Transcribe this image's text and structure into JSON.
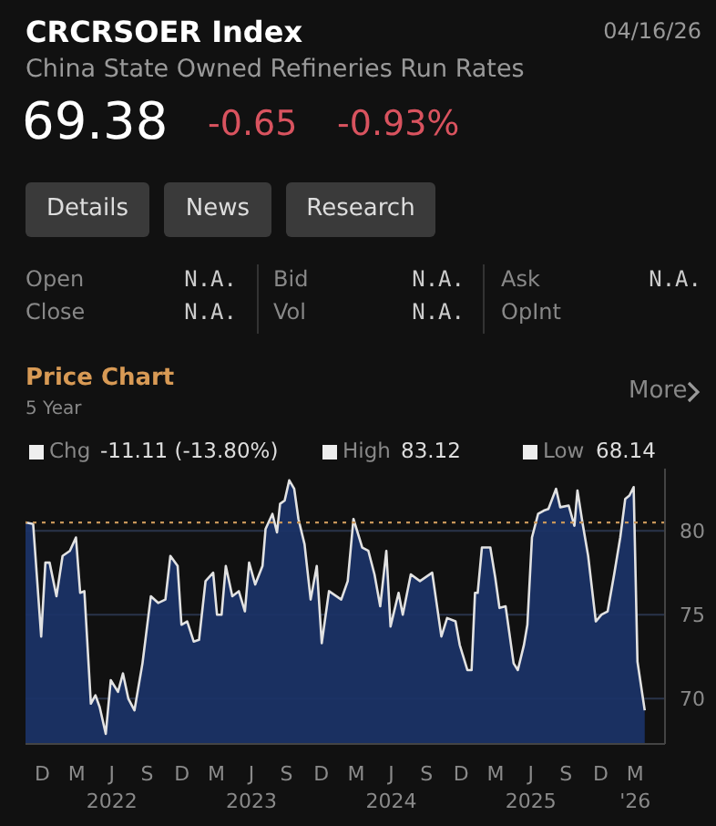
{
  "chart_data": {
    "type": "area",
    "title": "CRCRSOER Index",
    "subtitle": "China State Owned Refineries Run Rates",
    "annotations": [
      "04/16/26",
      "69.38",
      "-0.65",
      "-0.93%",
      "Details",
      "News",
      "Research",
      "Open",
      "N.A.",
      "Bid",
      "N.A.",
      "Ask",
      "N.A.",
      "Close",
      "N.A.",
      "Vol",
      "N.A.",
      "OpInt",
      "Price Chart",
      "5 Year",
      "More",
      "Chg",
      "-11.11 (-13.80%)",
      "High",
      "83.12",
      "Low",
      "68.14"
    ],
    "x": [
      "2021-10-18",
      "2021-11-07",
      "2021-11-28",
      "2021-12-09",
      "2021-12-20",
      "2022-01-07",
      "2022-01-23",
      "2022-02-11",
      "2022-02-27",
      "2022-03-10",
      "2022-03-21",
      "2022-04-07",
      "2022-04-19",
      "2022-04-30",
      "2022-05-16",
      "2022-05-29",
      "2022-06-17",
      "2022-06-30",
      "2022-07-14",
      "2022-07-30",
      "2022-08-20",
      "2022-09-11",
      "2022-09-30",
      "2022-10-19",
      "2022-11-01",
      "2022-11-20",
      "2022-11-30",
      "2022-12-15",
      "2023-01-01",
      "2023-01-15",
      "2023-02-01",
      "2023-02-21",
      "2023-03-03",
      "2023-03-15",
      "2023-03-26",
      "2023-04-12",
      "2023-04-29",
      "2023-05-15",
      "2023-05-26",
      "2023-06-11",
      "2023-06-30",
      "2023-07-08",
      "2023-07-26",
      "2023-08-07",
      "2023-08-15",
      "2023-08-27",
      "2023-09-08",
      "2023-09-21",
      "2023-10-02",
      "2023-10-18",
      "2023-11-03",
      "2023-11-19",
      "2023-12-02",
      "2023-12-21",
      "2024-01-22",
      "2024-02-08",
      "2024-02-23",
      "2024-03-17",
      "2024-04-02",
      "2024-04-18",
      "2024-05-03",
      "2024-05-19",
      "2024-05-30",
      "2024-06-20",
      "2024-07-01",
      "2024-07-22",
      "2024-08-15",
      "2024-09-16",
      "2024-10-10",
      "2024-10-25",
      "2024-11-16",
      "2024-11-27",
      "2024-12-17",
      "2024-12-28",
      "2025-01-06",
      "2025-01-13",
      "2025-01-24",
      "2025-02-15",
      "2025-02-28",
      "2025-03-11",
      "2025-03-27",
      "2025-04-17",
      "2025-04-28",
      "2025-05-14",
      "2025-05-23",
      "2025-06-04",
      "2025-06-20",
      "2025-07-05",
      "2025-07-17",
      "2025-08-06",
      "2025-08-17",
      "2025-09-08",
      "2025-09-23",
      "2025-10-01",
      "2025-10-14",
      "2025-10-29",
      "2025-11-18",
      "2025-12-03",
      "2025-12-19",
      "2026-01-05",
      "2026-01-21",
      "2026-02-03",
      "2026-02-14",
      "2026-02-25",
      "2026-03-07",
      "2026-03-26"
    ],
    "series": [
      {
        "color": "#1b3366",
        "values": [
          80.5,
          80.4,
          73.7,
          78.1,
          78.1,
          76.1,
          78.5,
          78.8,
          79.6,
          76.3,
          76.4,
          69.7,
          70.2,
          69.5,
          67.9,
          71.1,
          70.4,
          71.5,
          70.0,
          69.3,
          72.1,
          76.1,
          75.7,
          75.9,
          78.5,
          77.9,
          74.4,
          74.6,
          73.4,
          73.5,
          77.0,
          77.5,
          75.0,
          75.0,
          77.9,
          76.1,
          76.4,
          75.2,
          78.1,
          76.8,
          77.9,
          80.1,
          81.0,
          79.9,
          81.6,
          81.8,
          83.0,
          82.5,
          80.7,
          79.2,
          75.9,
          77.9,
          73.3,
          76.4,
          75.9,
          77.0,
          80.7,
          79.0,
          78.8,
          77.4,
          75.5,
          78.8,
          74.3,
          76.3,
          75.0,
          77.4,
          77.0,
          77.5,
          73.7,
          74.8,
          74.6,
          73.2,
          71.7,
          71.7,
          76.3,
          76.3,
          79.0,
          79.0,
          77.2,
          75.4,
          75.5,
          72.1,
          71.7,
          73.2,
          74.4,
          79.6,
          81.0,
          81.2,
          81.3,
          82.5,
          81.4,
          81.5,
          80.3,
          82.4,
          80.5,
          78.5,
          74.6,
          75.0,
          75.2,
          77.4,
          79.6,
          81.9,
          82.1,
          82.6,
          72.2,
          69.3
        ]
      }
    ],
    "xlim": [
      "2021-10-18",
      "2026-05-18"
    ],
    "xticks": [
      {
        "value": "2021-12-01",
        "label": "D"
      },
      {
        "value": "2022-03-01",
        "label": "M"
      },
      {
        "value": "2022-06-01",
        "label": "J\n2022"
      },
      {
        "value": "2022-09-01",
        "label": "S"
      },
      {
        "value": "2022-12-01",
        "label": "D"
      },
      {
        "value": "2023-03-01",
        "label": "M"
      },
      {
        "value": "2023-06-01",
        "label": "J\n2023"
      },
      {
        "value": "2023-09-01",
        "label": "S"
      },
      {
        "value": "2023-12-01",
        "label": "D"
      },
      {
        "value": "2024-03-01",
        "label": "M"
      },
      {
        "value": "2024-06-01",
        "label": "J\n2024"
      },
      {
        "value": "2024-09-01",
        "label": "S"
      },
      {
        "value": "2024-12-01",
        "label": "D"
      },
      {
        "value": "2025-03-01",
        "label": "M"
      },
      {
        "value": "2025-06-01",
        "label": "J\n2025"
      },
      {
        "value": "2025-09-01",
        "label": "S"
      },
      {
        "value": "2025-12-01",
        "label": "D"
      },
      {
        "value": "2026-03-01",
        "label": "M\n'26"
      }
    ],
    "ylim": [
      67.3,
      83.7
    ],
    "yticks": [
      70,
      75,
      80
    ],
    "grid": "y",
    "ref_lines": [
      {
        "axis": "y",
        "value": 80.49,
        "color": "#c8965a",
        "line_style": "dotted"
      }
    ]
  }
}
